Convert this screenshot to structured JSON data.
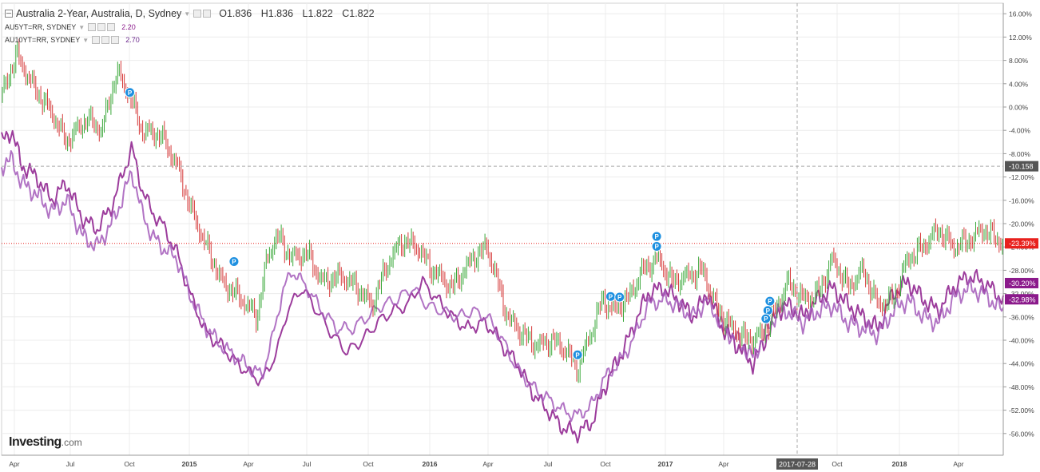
{
  "header": {
    "title": "Australia 2-Year, Australia, D, Sydney",
    "ohlc": {
      "o": "O1.836",
      "h": "H1.836",
      "l": "L1.822",
      "c": "C1.822"
    },
    "overlays": [
      {
        "label": "AU5YT=RR, SYDNEY",
        "value": "2.20",
        "color": "#8b1a8b"
      },
      {
        "label": "AU10YT=RR, SYDNEY",
        "value": "2.70",
        "color": "#6d2a8e"
      }
    ]
  },
  "brand": {
    "name": "Investing",
    "domain": ".com"
  },
  "chart_data": {
    "type": "line",
    "yaxis": {
      "ticks": [
        "16.00%",
        "12.00%",
        "8.00%",
        "4.00%",
        "0.00%",
        "-4.00%",
        "-8.00%",
        "-12.00%",
        "-16.00%",
        "-20.00%",
        "-24.00%",
        "-28.00%",
        "-32.00%",
        "-36.00%",
        "-40.00%",
        "-44.00%",
        "-48.00%",
        "-52.00%",
        "-56.00%"
      ],
      "range": [
        -60,
        18
      ]
    },
    "xaxis": {
      "labels": [
        "Apr",
        "Jul",
        "Oct",
        "2015",
        "Apr",
        "Jul",
        "Oct",
        "2016",
        "Apr",
        "Jul",
        "Oct",
        "2017",
        "Apr",
        "Oct",
        "2018",
        "Apr"
      ],
      "bold": [
        "2015",
        "2016",
        "2017",
        "2018"
      ],
      "cursor_label": "2017-07-28"
    },
    "price_tags": [
      {
        "text": "-10.158",
        "value": -10.158,
        "bg": "#555555"
      },
      {
        "text": "-23.39%",
        "value": -23.39,
        "bg": "#e8211d"
      },
      {
        "text": "-30.20%",
        "value": -30.2,
        "bg": "#8b1a8b"
      },
      {
        "text": "-32.98%",
        "value": -32.98,
        "bg": "#8b1a8b"
      }
    ],
    "marker_label": "P",
    "markers": [
      {
        "t": 0.128,
        "value": 2.5
      },
      {
        "t": 0.232,
        "value": -26.5
      },
      {
        "t": 0.575,
        "value": -42.5
      },
      {
        "t": 0.608,
        "value": -32.5
      },
      {
        "t": 0.617,
        "value": -32.6
      },
      {
        "t": 0.654,
        "value": -22.2
      },
      {
        "t": 0.654,
        "value": -23.9
      },
      {
        "t": 0.767,
        "value": -33.3
      },
      {
        "t": 0.765,
        "value": -34.9
      },
      {
        "t": 0.763,
        "value": -36.3
      }
    ],
    "series": [
      {
        "name": "Australia 2-Year",
        "kind": "candles",
        "up_color": "#3aa83a",
        "down_color": "#d63a3a",
        "keys": [
          [
            0.0,
            2
          ],
          [
            0.015,
            9
          ],
          [
            0.03,
            4
          ],
          [
            0.05,
            -1
          ],
          [
            0.065,
            -6
          ],
          [
            0.085,
            -2
          ],
          [
            0.1,
            -4
          ],
          [
            0.115,
            6
          ],
          [
            0.128,
            2
          ],
          [
            0.14,
            -4
          ],
          [
            0.16,
            -5
          ],
          [
            0.175,
            -10
          ],
          [
            0.19,
            -18
          ],
          [
            0.205,
            -24
          ],
          [
            0.22,
            -30
          ],
          [
            0.24,
            -33
          ],
          [
            0.255,
            -36
          ],
          [
            0.265,
            -26
          ],
          [
            0.275,
            -22
          ],
          [
            0.29,
            -26
          ],
          [
            0.305,
            -25
          ],
          [
            0.32,
            -30
          ],
          [
            0.34,
            -29
          ],
          [
            0.355,
            -31
          ],
          [
            0.37,
            -34
          ],
          [
            0.385,
            -27
          ],
          [
            0.4,
            -23
          ],
          [
            0.415,
            -24
          ],
          [
            0.43,
            -28
          ],
          [
            0.45,
            -31
          ],
          [
            0.47,
            -26
          ],
          [
            0.485,
            -24
          ],
          [
            0.495,
            -30
          ],
          [
            0.505,
            -36
          ],
          [
            0.52,
            -39
          ],
          [
            0.535,
            -41
          ],
          [
            0.55,
            -40
          ],
          [
            0.565,
            -42
          ],
          [
            0.575,
            -45
          ],
          [
            0.59,
            -38
          ],
          [
            0.6,
            -33
          ],
          [
            0.61,
            -35
          ],
          [
            0.625,
            -33
          ],
          [
            0.64,
            -28
          ],
          [
            0.655,
            -26
          ],
          [
            0.67,
            -30
          ],
          [
            0.685,
            -29
          ],
          [
            0.7,
            -28
          ],
          [
            0.715,
            -35
          ],
          [
            0.73,
            -38
          ],
          [
            0.745,
            -40
          ],
          [
            0.76,
            -39
          ],
          [
            0.775,
            -34
          ],
          [
            0.785,
            -30
          ],
          [
            0.8,
            -33
          ],
          [
            0.815,
            -32
          ],
          [
            0.83,
            -26
          ],
          [
            0.845,
            -31
          ],
          [
            0.86,
            -28
          ],
          [
            0.875,
            -34
          ],
          [
            0.89,
            -33
          ],
          [
            0.905,
            -26
          ],
          [
            0.92,
            -24
          ],
          [
            0.935,
            -21
          ],
          [
            0.95,
            -24
          ],
          [
            0.965,
            -23
          ],
          [
            0.98,
            -21
          ],
          [
            1.0,
            -23.4
          ]
        ]
      },
      {
        "name": "AU5YT=RR",
        "kind": "line",
        "color": "#8b1a8b",
        "keys": [
          [
            0.0,
            -6
          ],
          [
            0.01,
            -4
          ],
          [
            0.02,
            -10
          ],
          [
            0.035,
            -12
          ],
          [
            0.05,
            -16
          ],
          [
            0.065,
            -13
          ],
          [
            0.08,
            -19
          ],
          [
            0.095,
            -21
          ],
          [
            0.11,
            -17
          ],
          [
            0.12,
            -12
          ],
          [
            0.13,
            -7
          ],
          [
            0.14,
            -14
          ],
          [
            0.15,
            -18
          ],
          [
            0.16,
            -20
          ],
          [
            0.175,
            -25
          ],
          [
            0.19,
            -33
          ],
          [
            0.205,
            -39
          ],
          [
            0.22,
            -41
          ],
          [
            0.235,
            -44
          ],
          [
            0.25,
            -46
          ],
          [
            0.26,
            -47
          ],
          [
            0.275,
            -42
          ],
          [
            0.285,
            -35
          ],
          [
            0.3,
            -31
          ],
          [
            0.315,
            -35
          ],
          [
            0.33,
            -39
          ],
          [
            0.345,
            -42
          ],
          [
            0.36,
            -40
          ],
          [
            0.375,
            -37
          ],
          [
            0.39,
            -35
          ],
          [
            0.405,
            -34
          ],
          [
            0.42,
            -30
          ],
          [
            0.435,
            -33
          ],
          [
            0.45,
            -36
          ],
          [
            0.465,
            -38
          ],
          [
            0.48,
            -37
          ],
          [
            0.49,
            -38
          ],
          [
            0.5,
            -41
          ],
          [
            0.515,
            -44
          ],
          [
            0.53,
            -49
          ],
          [
            0.545,
            -52
          ],
          [
            0.56,
            -55
          ],
          [
            0.575,
            -56
          ],
          [
            0.59,
            -54
          ],
          [
            0.6,
            -49
          ],
          [
            0.61,
            -45
          ],
          [
            0.62,
            -42
          ],
          [
            0.63,
            -38
          ],
          [
            0.645,
            -32
          ],
          [
            0.66,
            -31
          ],
          [
            0.675,
            -33
          ],
          [
            0.69,
            -36
          ],
          [
            0.705,
            -32
          ],
          [
            0.72,
            -38
          ],
          [
            0.735,
            -41
          ],
          [
            0.75,
            -44
          ],
          [
            0.765,
            -39
          ],
          [
            0.775,
            -35
          ],
          [
            0.785,
            -34
          ],
          [
            0.8,
            -36
          ],
          [
            0.815,
            -33
          ],
          [
            0.83,
            -31
          ],
          [
            0.845,
            -34
          ],
          [
            0.86,
            -36
          ],
          [
            0.875,
            -38
          ],
          [
            0.89,
            -32
          ],
          [
            0.905,
            -30
          ],
          [
            0.92,
            -33
          ],
          [
            0.935,
            -35
          ],
          [
            0.95,
            -31
          ],
          [
            0.965,
            -29
          ],
          [
            0.98,
            -30
          ],
          [
            1.0,
            -33
          ]
        ]
      },
      {
        "name": "AU10YT=RR",
        "kind": "line",
        "color": "#a35aba",
        "keys": [
          [
            0.0,
            -10
          ],
          [
            0.01,
            -9
          ],
          [
            0.02,
            -13
          ],
          [
            0.035,
            -15
          ],
          [
            0.05,
            -18
          ],
          [
            0.065,
            -16
          ],
          [
            0.08,
            -22
          ],
          [
            0.095,
            -24
          ],
          [
            0.11,
            -20
          ],
          [
            0.12,
            -16
          ],
          [
            0.13,
            -11
          ],
          [
            0.14,
            -18
          ],
          [
            0.15,
            -22
          ],
          [
            0.16,
            -24
          ],
          [
            0.175,
            -26
          ],
          [
            0.19,
            -33
          ],
          [
            0.205,
            -38
          ],
          [
            0.22,
            -41
          ],
          [
            0.235,
            -43
          ],
          [
            0.25,
            -45
          ],
          [
            0.26,
            -46
          ],
          [
            0.27,
            -40
          ],
          [
            0.28,
            -32
          ],
          [
            0.29,
            -28
          ],
          [
            0.305,
            -31
          ],
          [
            0.32,
            -35
          ],
          [
            0.335,
            -38
          ],
          [
            0.35,
            -38
          ],
          [
            0.365,
            -36
          ],
          [
            0.38,
            -34
          ],
          [
            0.395,
            -33
          ],
          [
            0.41,
            -31
          ],
          [
            0.425,
            -34
          ],
          [
            0.44,
            -35
          ],
          [
            0.455,
            -36
          ],
          [
            0.47,
            -35
          ],
          [
            0.485,
            -36
          ],
          [
            0.5,
            -40
          ],
          [
            0.515,
            -45
          ],
          [
            0.53,
            -48
          ],
          [
            0.545,
            -50
          ],
          [
            0.56,
            -52
          ],
          [
            0.575,
            -53
          ],
          [
            0.59,
            -51
          ],
          [
            0.6,
            -47
          ],
          [
            0.61,
            -45
          ],
          [
            0.62,
            -43
          ],
          [
            0.63,
            -40
          ],
          [
            0.645,
            -34
          ],
          [
            0.66,
            -33
          ],
          [
            0.675,
            -34
          ],
          [
            0.69,
            -36
          ],
          [
            0.705,
            -33
          ],
          [
            0.72,
            -38
          ],
          [
            0.735,
            -40
          ],
          [
            0.75,
            -43
          ],
          [
            0.765,
            -38
          ],
          [
            0.775,
            -35
          ],
          [
            0.785,
            -35
          ],
          [
            0.8,
            -37
          ],
          [
            0.815,
            -35
          ],
          [
            0.83,
            -34
          ],
          [
            0.845,
            -37
          ],
          [
            0.86,
            -38
          ],
          [
            0.875,
            -39
          ],
          [
            0.89,
            -35
          ],
          [
            0.905,
            -33
          ],
          [
            0.92,
            -36
          ],
          [
            0.935,
            -37
          ],
          [
            0.95,
            -33
          ],
          [
            0.965,
            -31
          ],
          [
            0.98,
            -32
          ],
          [
            1.0,
            -35
          ]
        ]
      }
    ]
  }
}
